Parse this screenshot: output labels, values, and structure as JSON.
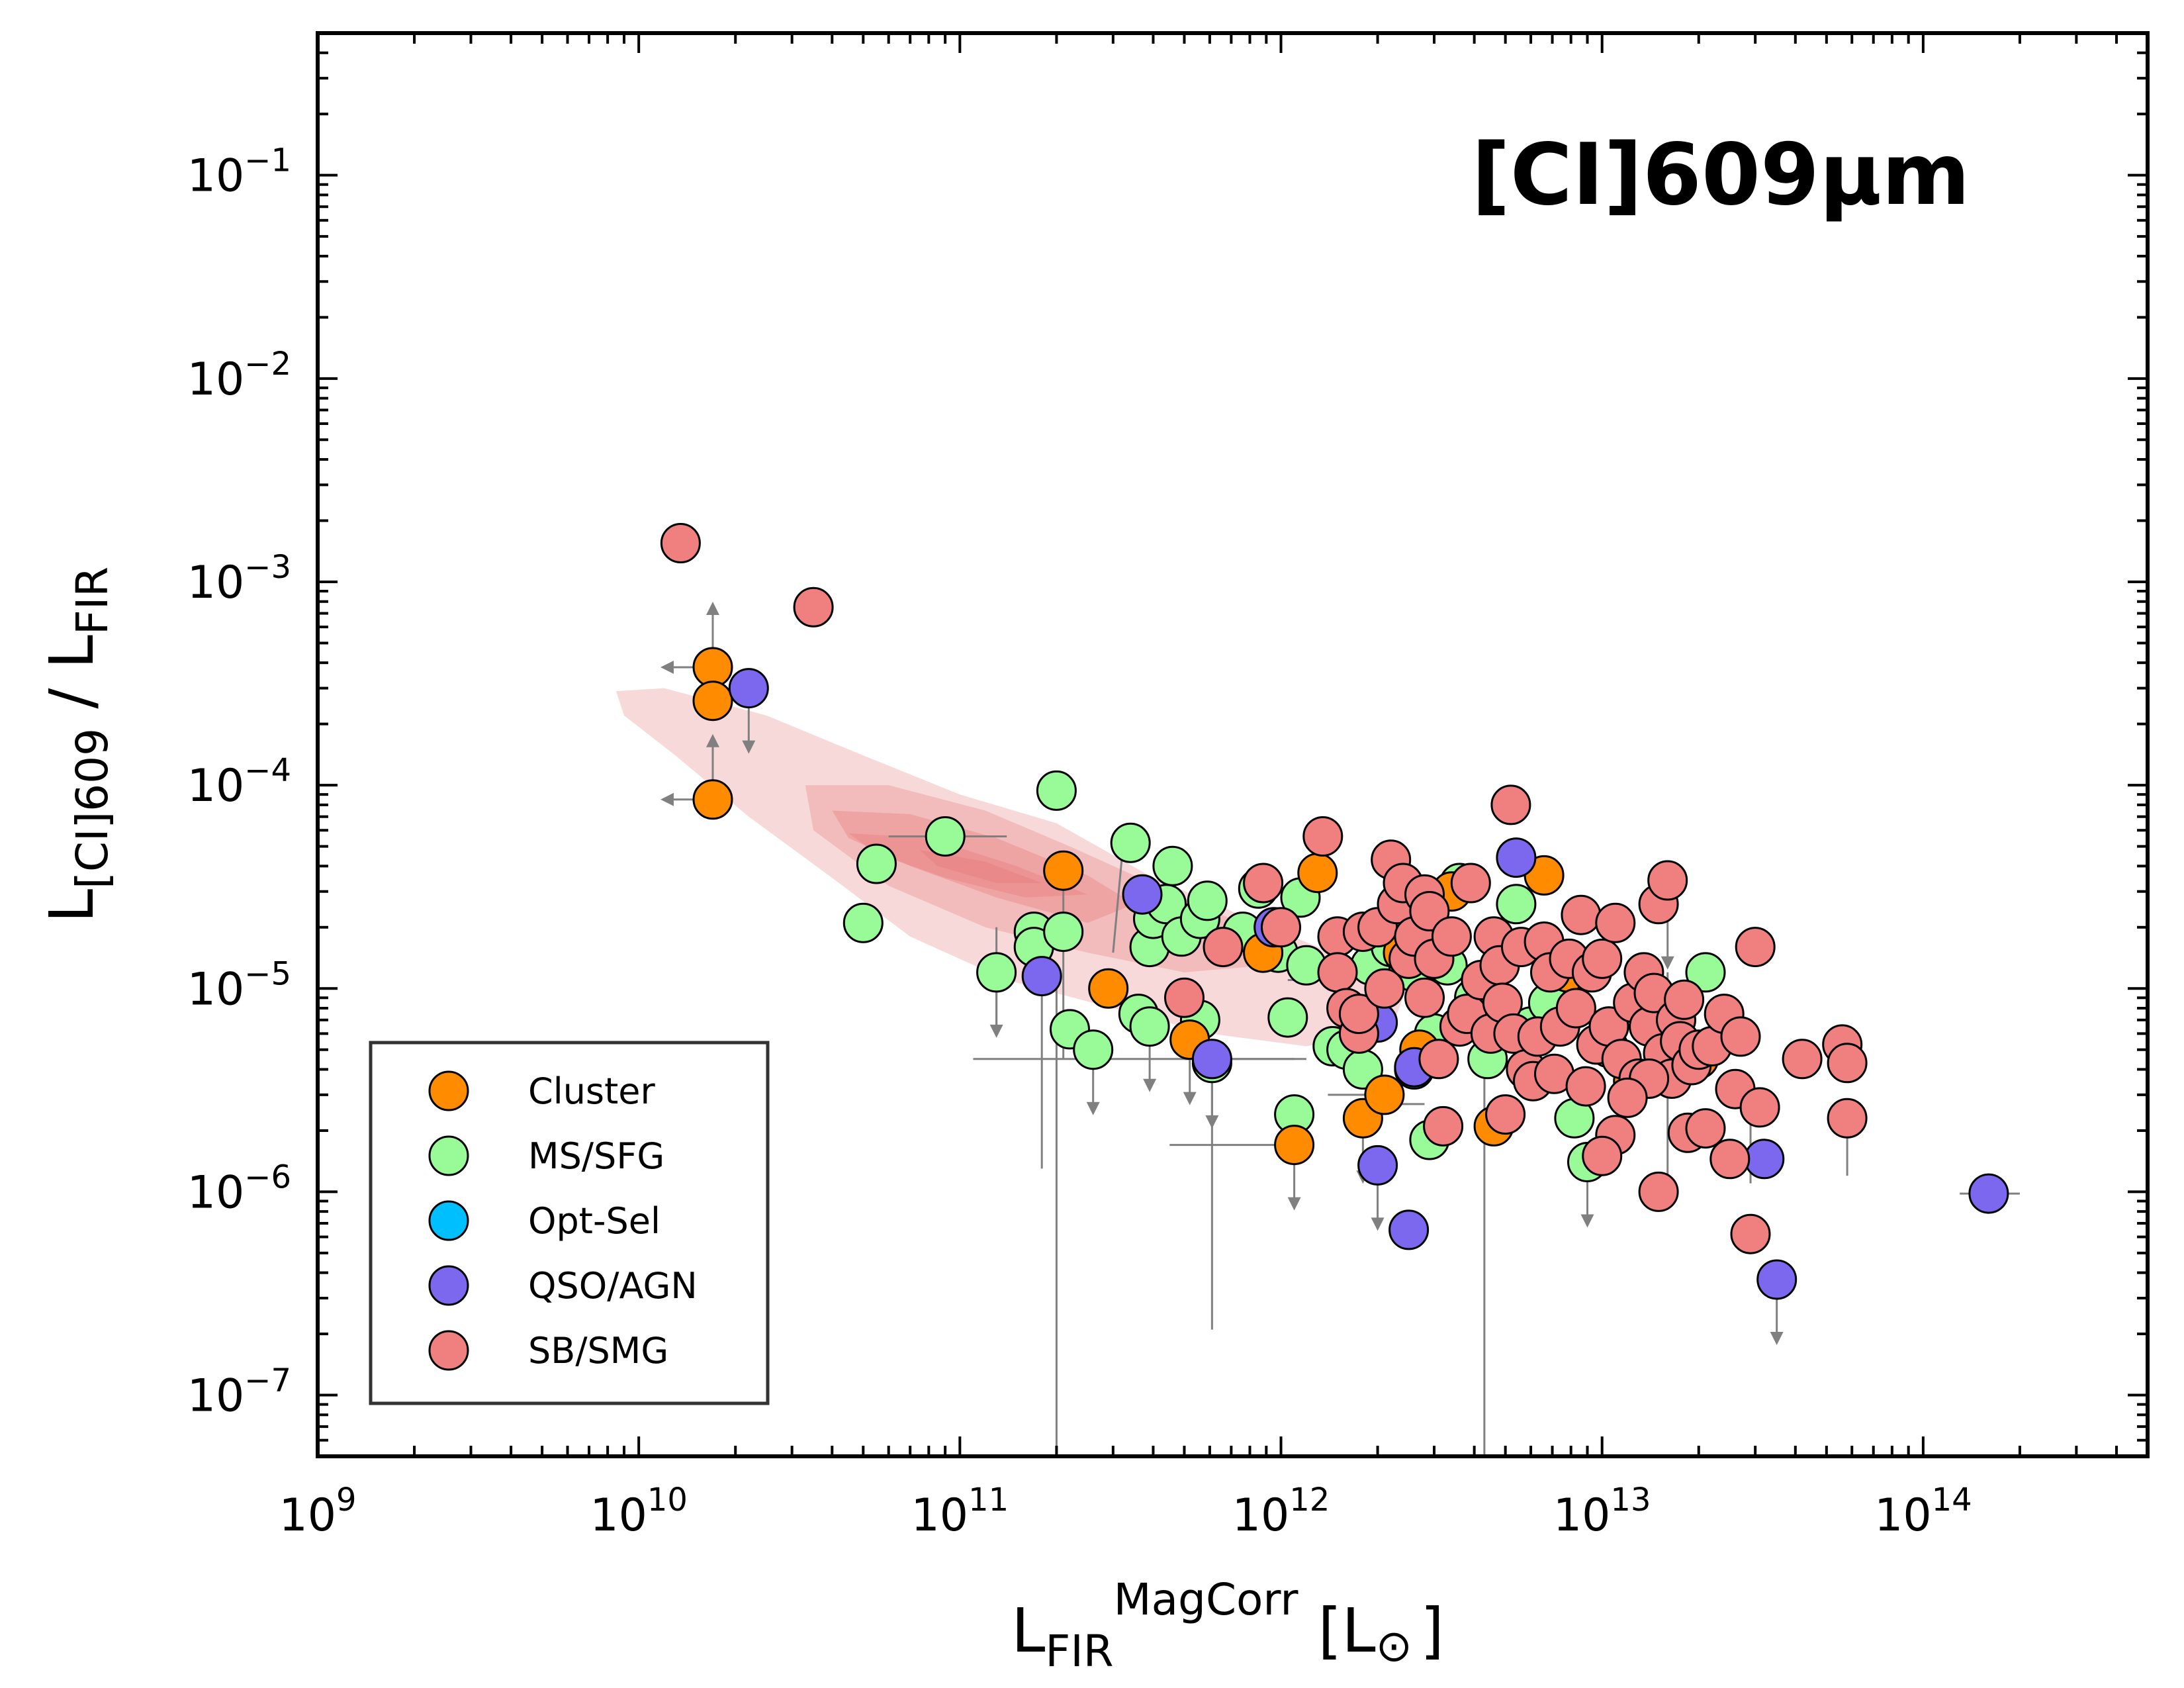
{
  "chart_data": {
    "type": "scatter",
    "title": "[CI]609μm",
    "xlabel": {
      "main": "L",
      "sub": "FIR",
      "sup": "MagCorr",
      "unit": "[L",
      "sun": "⊙",
      "close": "]"
    },
    "ylabel": {
      "main": "L",
      "sub": "[CI]609",
      "mid": " / L",
      "sub2": "FIR"
    },
    "xscale": "log",
    "yscale": "log",
    "xlim": [
      1000000000.0,
      500000000000000.0
    ],
    "ylim": [
      5e-08,
      0.5
    ],
    "xticks": [
      {
        "exp": "9"
      },
      {
        "exp": "10"
      },
      {
        "exp": "11"
      },
      {
        "exp": "12"
      },
      {
        "exp": "13"
      },
      {
        "exp": "14"
      }
    ],
    "yticks": [
      {
        "exp": "−7"
      },
      {
        "exp": "−6"
      },
      {
        "exp": "−5"
      },
      {
        "exp": "−4"
      },
      {
        "exp": "−3"
      },
      {
        "exp": "−2"
      },
      {
        "exp": "−1"
      }
    ],
    "tick_base": "10",
    "legend_position": "lower-left",
    "colors": {
      "Cluster": "#ff8c00",
      "MS/SFG": "#98fb98",
      "Opt-Sel": "#00bfff",
      "QSO/AGN": "#7b68ee",
      "SB/SMG": "#f08080",
      "contour": "#e88080",
      "errorbar": "#808080"
    },
    "series": [
      {
        "name": "Cluster",
        "points": [
          [
            17000000000.0,
            0.00038
          ],
          [
            17000000000.0,
            0.00026
          ],
          [
            17000000000.0,
            8.5e-05
          ],
          [
            210000000000.0,
            3.8e-05
          ],
          [
            290000000000.0,
            1e-05
          ],
          [
            520000000000.0,
            5.6e-06
          ],
          [
            880000000000.0,
            1.5e-05
          ],
          [
            1100000000000.0,
            1.7e-06
          ],
          [
            1300000000000.0,
            3.7e-05
          ],
          [
            1800000000000.0,
            2.3e-06
          ],
          [
            2100000000000.0,
            3e-06
          ],
          [
            2400000000000.0,
            1.5e-05
          ],
          [
            2700000000000.0,
            5e-06
          ],
          [
            3400000000000.0,
            3e-05
          ],
          [
            4600000000000.0,
            2.1e-06
          ],
          [
            6600000000000.0,
            3.6e-05
          ],
          [
            7800000000000.0,
            1.2e-05
          ],
          [
            10500000000000.0,
            5.1e-06
          ],
          [
            12500000000000.0,
            3.5e-06
          ],
          [
            16000000000000.0,
            6e-06
          ],
          [
            20000000000000.0,
            4.5e-06
          ]
        ]
      },
      {
        "name": "MS/SFG",
        "points": [
          [
            50000000000.0,
            2.1e-05
          ],
          [
            55000000000.0,
            4.1e-05
          ],
          [
            90000000000.0,
            5.6e-05
          ],
          [
            130000000000.0,
            1.2e-05
          ],
          [
            170000000000.0,
            1.9e-05
          ],
          [
            170000000000.0,
            1.6e-05
          ],
          [
            200000000000.0,
            9.4e-05
          ],
          [
            210000000000.0,
            1.9e-05
          ],
          [
            220000000000.0,
            6.3e-06
          ],
          [
            260000000000.0,
            5e-06
          ],
          [
            340000000000.0,
            5.2e-05
          ],
          [
            360000000000.0,
            7.5e-06
          ],
          [
            390000000000.0,
            6.5e-06
          ],
          [
            390000000000.0,
            1.6e-05
          ],
          [
            400000000000.0,
            2.2e-05
          ],
          [
            440000000000.0,
            2.6e-05
          ],
          [
            460000000000.0,
            4e-05
          ],
          [
            490000000000.0,
            1.8e-05
          ],
          [
            560000000000.0,
            7e-06
          ],
          [
            560000000000.0,
            2.2e-05
          ],
          [
            590000000000.0,
            2.7e-05
          ],
          [
            610000000000.0,
            4.3e-06
          ],
          [
            760000000000.0,
            1.9e-05
          ],
          [
            850000000000.0,
            3.1e-05
          ],
          [
            980000000000.0,
            1.5e-05
          ],
          [
            1050000000000.0,
            7.2e-06
          ],
          [
            1100000000000.0,
            2.4e-06
          ],
          [
            1150000000000.0,
            2.8e-05
          ],
          [
            1200000000000.0,
            1.3e-05
          ],
          [
            1450000000000.0,
            5.2e-06
          ],
          [
            1600000000000.0,
            5e-06
          ],
          [
            1800000000000.0,
            4e-06
          ],
          [
            1900000000000.0,
            1.3e-05
          ],
          [
            2200000000000.0,
            1.6e-05
          ],
          [
            2600000000000.0,
            1.2e-05
          ],
          [
            2900000000000.0,
            1.8e-06
          ],
          [
            3000000000000.0,
            6e-06
          ],
          [
            3300000000000.0,
            1.3e-05
          ],
          [
            3600000000000.0,
            3.3e-05
          ],
          [
            4000000000000.0,
            9e-06
          ],
          [
            4400000000000.0,
            4.5e-06
          ],
          [
            5400000000000.0,
            2.6e-05
          ],
          [
            6000000000000.0,
            6.5e-06
          ],
          [
            6800000000000.0,
            8.5e-06
          ],
          [
            8200000000000.0,
            2.3e-06
          ],
          [
            9000000000000.0,
            1.4e-06
          ],
          [
            10500000000000.0,
            6.5e-06
          ],
          [
            21000000000000.0,
            1.2e-05
          ]
        ]
      },
      {
        "name": "Opt-Sel",
        "points": [
          [
            2600000000000.0,
            4e-06
          ]
        ]
      },
      {
        "name": "QSO/AGN",
        "points": [
          [
            22000000000.0,
            0.0003
          ],
          [
            180000000000.0,
            1.15e-05
          ],
          [
            370000000000.0,
            2.9e-05
          ],
          [
            610000000000.0,
            4.5e-06
          ],
          [
            950000000000.0,
            2e-05
          ],
          [
            2000000000000.0,
            1.35e-06
          ],
          [
            2000000000000.0,
            6.8e-06
          ],
          [
            2500000000000.0,
            6.5e-07
          ],
          [
            2600000000000.0,
            4.1e-06
          ],
          [
            5400000000000.0,
            4.4e-05
          ],
          [
            32000000000000.0,
            1.45e-06
          ],
          [
            35000000000000.0,
            3.7e-07
          ],
          [
            160000000000000.0,
            9.8e-07
          ]
        ]
      },
      {
        "name": "SB/SMG",
        "points": [
          [
            13500000000.0,
            0.00155
          ],
          [
            35000000000.0,
            0.00075
          ],
          [
            500000000000.0,
            9e-06
          ],
          [
            660000000000.0,
            1.6e-05
          ],
          [
            1000000000000.0,
            2e-05
          ],
          [
            880000000000.0,
            3.3e-05
          ],
          [
            1350000000000.0,
            5.6e-05
          ],
          [
            1500000000000.0,
            1.8e-05
          ],
          [
            1500000000000.0,
            1.2e-05
          ],
          [
            1600000000000.0,
            8e-06
          ],
          [
            1750000000000.0,
            6e-06
          ],
          [
            1800000000000.0,
            1.9e-05
          ],
          [
            1750000000000.0,
            7.5e-06
          ],
          [
            2000000000000.0,
            2e-05
          ],
          [
            2200000000000.0,
            4.3e-05
          ],
          [
            2100000000000.0,
            1e-05
          ],
          [
            2300000000000.0,
            2.6e-05
          ],
          [
            2400000000000.0,
            3.3e-05
          ],
          [
            2500000000000.0,
            1.4e-05
          ],
          [
            2600000000000.0,
            1.8e-05
          ],
          [
            2800000000000.0,
            2.9e-05
          ],
          [
            2800000000000.0,
            9e-06
          ],
          [
            2900000000000.0,
            2.4e-05
          ],
          [
            3000000000000.0,
            1.4e-05
          ],
          [
            3100000000000.0,
            4.5e-06
          ],
          [
            3200000000000.0,
            2.1e-06
          ],
          [
            3400000000000.0,
            1.8e-05
          ],
          [
            3600000000000.0,
            6.5e-06
          ],
          [
            3800000000000.0,
            7.5e-06
          ],
          [
            3900000000000.0,
            3.3e-05
          ],
          [
            4200000000000.0,
            1.1e-05
          ],
          [
            4500000000000.0,
            6e-06
          ],
          [
            4600000000000.0,
            1.8e-05
          ],
          [
            4800000000000.0,
            1.3e-05
          ],
          [
            4900000000000.0,
            8.5e-06
          ],
          [
            5000000000000.0,
            2.4e-06
          ],
          [
            5200000000000.0,
            8e-05
          ],
          [
            5300000000000.0,
            6e-06
          ],
          [
            5600000000000.0,
            1.6e-05
          ],
          [
            5800000000000.0,
            4e-06
          ],
          [
            6100000000000.0,
            3.5e-06
          ],
          [
            6300000000000.0,
            5.8e-06
          ],
          [
            6600000000000.0,
            1.7e-05
          ],
          [
            6900000000000.0,
            1.2e-05
          ],
          [
            7100000000000.0,
            3.8e-06
          ],
          [
            7400000000000.0,
            6.5e-06
          ],
          [
            7900000000000.0,
            1.4e-05
          ],
          [
            8300000000000.0,
            8e-06
          ],
          [
            8600000000000.0,
            2.3e-05
          ],
          [
            8900000000000.0,
            3.3e-06
          ],
          [
            9300000000000.0,
            1.2e-05
          ],
          [
            9600000000000.0,
            5.3e-06
          ],
          [
            10000000000000.0,
            1.4e-05
          ],
          [
            10500000000000.0,
            6.5e-06
          ],
          [
            11000000000000.0,
            2.1e-05
          ],
          [
            11000000000000.0,
            1.9e-06
          ],
          [
            10000000000000.0,
            1.5e-06
          ],
          [
            11500000000000.0,
            4.5e-06
          ],
          [
            12500000000000.0,
            8.5e-06
          ],
          [
            13000000000000.0,
            3.6e-06
          ],
          [
            13500000000000.0,
            1.2e-05
          ],
          [
            14000000000000.0,
            6.5e-06
          ],
          [
            14500000000000.0,
            9.5e-06
          ],
          [
            15000000000000.0,
            2.6e-05
          ],
          [
            16000000000000.0,
            3.4e-05
          ],
          [
            15500000000000.0,
            4.8e-06
          ],
          [
            16500000000000.0,
            3.6e-06
          ],
          [
            17000000000000.0,
            7e-06
          ],
          [
            17500000000000.0,
            5.5e-06
          ],
          [
            18000000000000.0,
            8.8e-06
          ],
          [
            18500000000000.0,
            1.95e-06
          ],
          [
            15000000000000.0,
            1e-06
          ],
          [
            19000000000000.0,
            4.2e-06
          ],
          [
            20000000000000.0,
            5e-06
          ],
          [
            21000000000000.0,
            2.05e-06
          ],
          [
            22000000000000.0,
            5.2e-06
          ],
          [
            24000000000000.0,
            7.5e-06
          ],
          [
            25000000000000.0,
            1.45e-06
          ],
          [
            26000000000000.0,
            3.2e-06
          ],
          [
            27000000000000.0,
            5.8e-06
          ],
          [
            30000000000000.0,
            1.6e-05
          ],
          [
            31000000000000.0,
            2.6e-06
          ],
          [
            29000000000000.0,
            6.2e-07
          ],
          [
            42000000000000.0,
            4.5e-06
          ],
          [
            56000000000000.0,
            5.3e-06
          ],
          [
            58000000000000.0,
            4.3e-06
          ],
          [
            58000000000000.0,
            2.3e-06
          ],
          [
            14000000000000.0,
            3.6e-06
          ],
          [
            12000000000000.0,
            2.9e-06
          ]
        ]
      }
    ],
    "legend": [
      "Cluster",
      "MS/SFG",
      "Opt-Sel",
      "QSO/AGN",
      "SB/SMG"
    ]
  }
}
